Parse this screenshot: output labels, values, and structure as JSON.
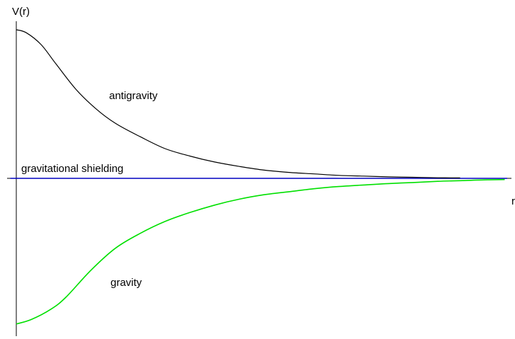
{
  "chart_data": {
    "type": "line",
    "title": "",
    "ylabel": "V(r)",
    "xlabel": "r",
    "xlim": [
      0,
      10
    ],
    "ylim": [
      -1,
      1
    ],
    "grid": false,
    "legend": "none",
    "series": [
      {
        "name": "antigravity",
        "color": "#000000",
        "x": [
          0,
          0.2,
          0.5,
          0.8,
          1.2,
          1.6,
          2.0,
          2.5,
          3.0,
          3.5,
          4.0,
          4.5,
          5.0,
          5.5,
          6.0,
          6.5,
          7.0,
          7.5,
          8.0,
          8.5,
          8.95
        ],
        "y": [
          1.0,
          0.98,
          0.9,
          0.77,
          0.6,
          0.47,
          0.37,
          0.28,
          0.2,
          0.15,
          0.11,
          0.08,
          0.055,
          0.04,
          0.03,
          0.02,
          0.015,
          0.01,
          0.007,
          0.004,
          0.003
        ]
      },
      {
        "name": "gravitational shielding",
        "color": "#0000c0",
        "x": [
          -0.12,
          9.9
        ],
        "y": [
          0,
          0
        ]
      },
      {
        "name": "gravity",
        "color": "#00e000",
        "x": [
          0,
          0.3,
          0.7,
          1.0,
          1.5,
          2.0,
          2.5,
          3.0,
          3.5,
          4.0,
          4.5,
          5.0,
          5.5,
          6.0,
          6.5,
          7.0,
          7.5,
          8.0,
          8.5,
          9.0,
          9.5,
          9.85
        ],
        "y": [
          -0.98,
          -0.95,
          -0.88,
          -0.8,
          -0.62,
          -0.47,
          -0.37,
          -0.29,
          -0.23,
          -0.18,
          -0.14,
          -0.11,
          -0.09,
          -0.07,
          -0.055,
          -0.045,
          -0.035,
          -0.028,
          -0.02,
          -0.015,
          -0.01,
          -0.008
        ]
      }
    ],
    "annotations": [
      {
        "text": "antigravity",
        "series": "antigravity"
      },
      {
        "text": "gravitational shielding",
        "series": "gravitational shielding"
      },
      {
        "text": "gravity",
        "series": "gravity"
      }
    ]
  }
}
